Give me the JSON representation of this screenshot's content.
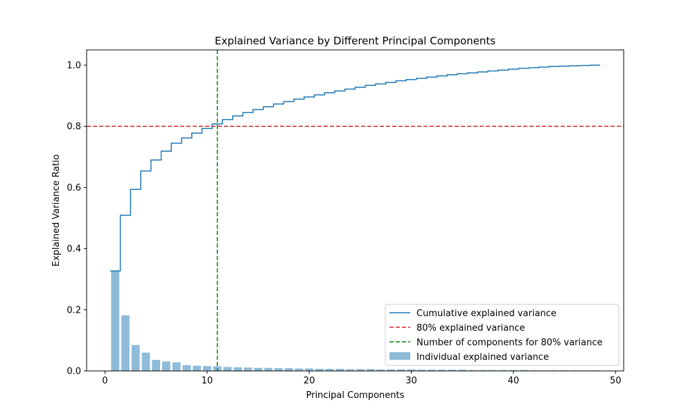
{
  "chart_data": {
    "type": "bar",
    "title": "Explained Variance by Different Principal Components",
    "xlabel": "Principal Components",
    "ylabel": "Explained Variance Ratio",
    "xlim": [
      -1.8,
      50.8
    ],
    "ylim": [
      0,
      1.05
    ],
    "xticks": [
      0,
      10,
      20,
      30,
      40,
      50
    ],
    "yticks": [
      0.0,
      0.2,
      0.4,
      0.6,
      0.8,
      1.0
    ],
    "xtick_labels": [
      "0",
      "10",
      "20",
      "30",
      "40",
      "50"
    ],
    "ytick_labels": [
      "0.0",
      "0.2",
      "0.4",
      "0.6",
      "0.8",
      "1.0"
    ],
    "x": [
      1,
      2,
      3,
      4,
      5,
      6,
      7,
      8,
      9,
      10,
      11,
      12,
      13,
      14,
      15,
      16,
      17,
      18,
      19,
      20,
      21,
      22,
      23,
      24,
      25,
      26,
      27,
      28,
      29,
      30,
      31,
      32,
      33,
      34,
      35,
      36,
      37,
      38,
      39,
      40,
      41,
      42,
      43,
      44,
      45,
      46,
      47,
      48
    ],
    "individual_explained_variance": [
      0.327,
      0.182,
      0.085,
      0.06,
      0.036,
      0.031,
      0.028,
      0.019,
      0.017,
      0.016,
      0.015,
      0.013,
      0.012,
      0.011,
      0.01,
      0.01,
      0.009,
      0.009,
      0.008,
      0.008,
      0.007,
      0.007,
      0.007,
      0.006,
      0.006,
      0.006,
      0.005,
      0.005,
      0.005,
      0.005,
      0.004,
      0.004,
      0.004,
      0.004,
      0.004,
      0.003,
      0.003,
      0.003,
      0.003,
      0.003,
      0.003,
      0.002,
      0.002,
      0.002,
      0.002,
      0.002,
      0.002,
      0.002
    ],
    "cumulative_explained_variance": [
      0.327,
      0.509,
      0.594,
      0.654,
      0.69,
      0.719,
      0.745,
      0.762,
      0.778,
      0.793,
      0.808,
      0.822,
      0.834,
      0.845,
      0.855,
      0.864,
      0.873,
      0.881,
      0.889,
      0.896,
      0.903,
      0.91,
      0.916,
      0.922,
      0.928,
      0.934,
      0.939,
      0.944,
      0.949,
      0.953,
      0.957,
      0.961,
      0.965,
      0.969,
      0.972,
      0.975,
      0.978,
      0.981,
      0.984,
      0.987,
      0.99,
      0.992,
      0.994,
      0.996,
      0.997,
      0.998,
      0.999,
      1.0
    ],
    "threshold_y": 0.8,
    "threshold_x": 11,
    "series": [
      {
        "name": "Cumulative explained variance",
        "style": "step",
        "color": "#1f77b4"
      },
      {
        "name": "80% explained variance",
        "style": "dashed-horizontal",
        "color": "#d62728"
      },
      {
        "name": "Number of components for 80% variance",
        "style": "dashed-vertical",
        "color": "#008000"
      },
      {
        "name": "Individual explained variance",
        "style": "bar",
        "color": "#1f77b4",
        "alpha": 0.5
      }
    ],
    "legend_position": "lower-right",
    "grid": false
  }
}
